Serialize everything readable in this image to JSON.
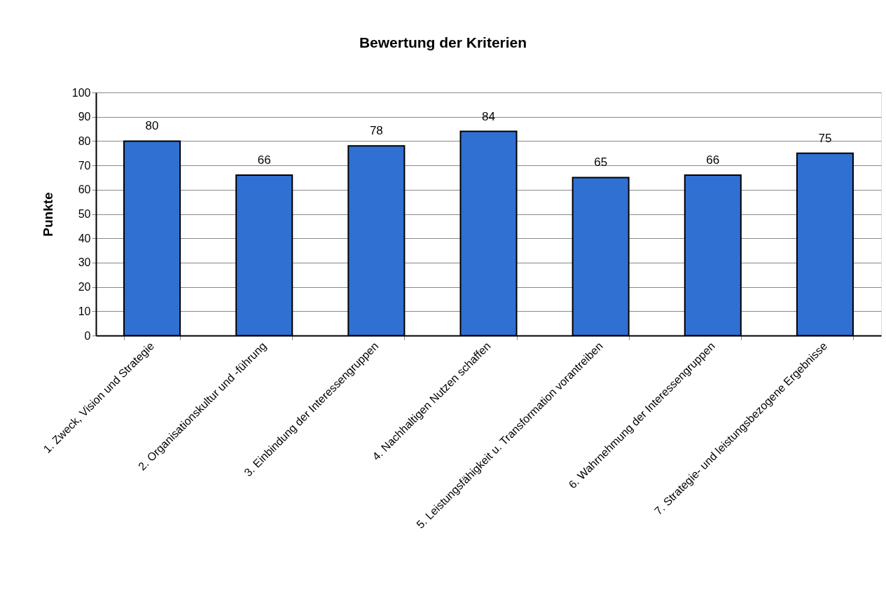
{
  "chart_data": {
    "type": "bar",
    "title": "Bewertung der Kriterien",
    "ylabel": "Punkte",
    "categories": [
      "1. Zweck, Vision und Strategie",
      "2. Organisationskultur und -führung",
      "3. Einbindung der Interessengruppen",
      "4. Nachhaltigen Nutzen schaffen",
      "5. Leistungsfähigkeit u. Transformation vorantreiben",
      "6. Wahrnehmung der Interessengruppen",
      "7. Strategie- und leistungsbezogene Ergebnisse"
    ],
    "values": [
      80,
      66,
      78,
      84,
      65,
      66,
      75
    ],
    "color": "#3070d2",
    "ylim": [
      0,
      100
    ],
    "yticks": [
      0,
      10,
      20,
      30,
      40,
      50,
      60,
      70,
      80,
      90,
      100
    ],
    "grid": "y",
    "data_labels": true
  }
}
